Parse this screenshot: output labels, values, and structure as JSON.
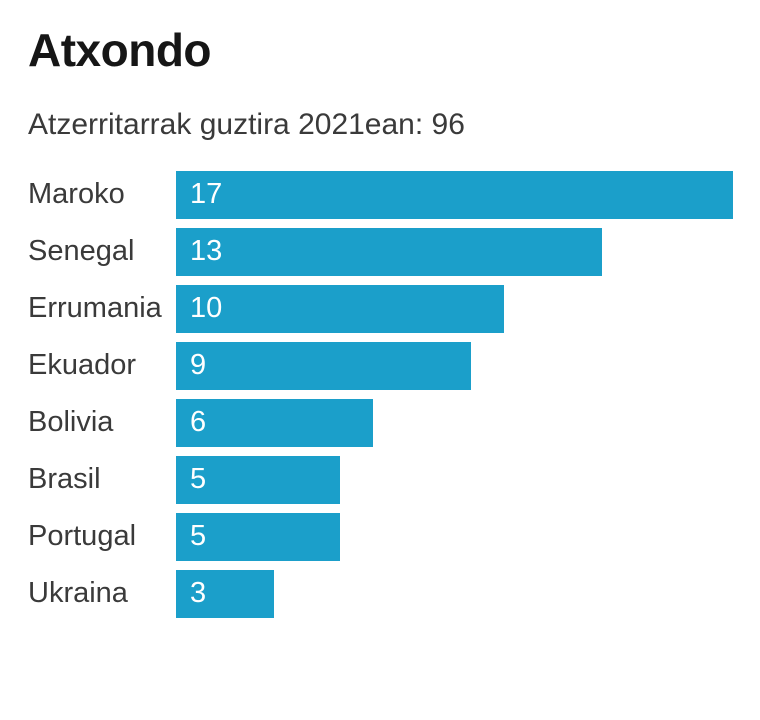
{
  "header": {
    "title": "Atxondo",
    "subtitle": "Atzerritarrak guztira 2021ean: 96"
  },
  "chart_data": {
    "type": "bar",
    "orientation": "horizontal",
    "title": "Atxondo",
    "subtitle": "Atzerritarrak guztira 2021ean: 96",
    "total_2021": 96,
    "categories": [
      "Maroko",
      "Senegal",
      "Errumania",
      "Ekuador",
      "Bolivia",
      "Brasil",
      "Portugal",
      "Ukraina"
    ],
    "values": [
      17,
      13,
      10,
      9,
      6,
      5,
      5,
      3
    ],
    "xlim": [
      0,
      17
    ],
    "grid": false,
    "legend": false,
    "bar_color": "#1B9FCA",
    "value_label_color": "#FFFFFF",
    "category_label_color": "#3A3A3A",
    "title_color": "#161616",
    "background_color": "#FFFFFF"
  }
}
